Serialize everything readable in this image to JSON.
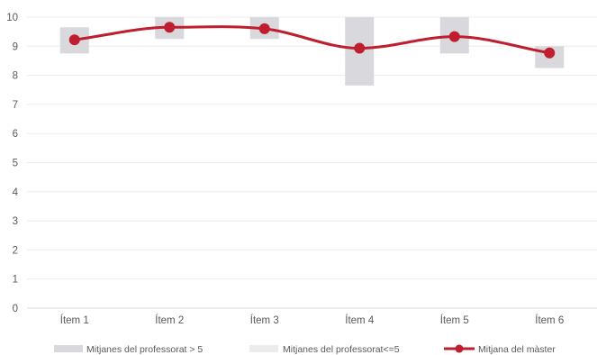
{
  "chart_data": {
    "type": "bar",
    "categories": [
      "Ítem 1",
      "Ítem 2",
      "Ítem 3",
      "Ítem 4",
      "Ítem 5",
      "Ítem 6"
    ],
    "ylim": [
      0,
      10
    ],
    "yticks": [
      0,
      1,
      2,
      3,
      4,
      5,
      6,
      7,
      8,
      9,
      10
    ],
    "grid": true,
    "legend_position": "bottom",
    "series": [
      {
        "name": "Mitjanes del professorat > 5",
        "kind": "floating-bar",
        "color": "#d9d8dc",
        "ranges": [
          [
            8.75,
            9.65
          ],
          [
            9.25,
            10.0
          ],
          [
            9.25,
            10.0
          ],
          [
            7.65,
            10.0
          ],
          [
            8.75,
            10.0
          ],
          [
            8.25,
            9.0
          ]
        ]
      },
      {
        "name": "Mitjanes del professorat<=5",
        "kind": "floating-bar",
        "color": "#ececec",
        "ranges": [
          null,
          null,
          null,
          null,
          null,
          null
        ]
      },
      {
        "name": "Mitjana del màster",
        "kind": "line",
        "smooth": true,
        "color": "#be1e2d",
        "values": [
          9.22,
          9.65,
          9.6,
          8.93,
          9.33,
          8.77
        ]
      }
    ]
  }
}
